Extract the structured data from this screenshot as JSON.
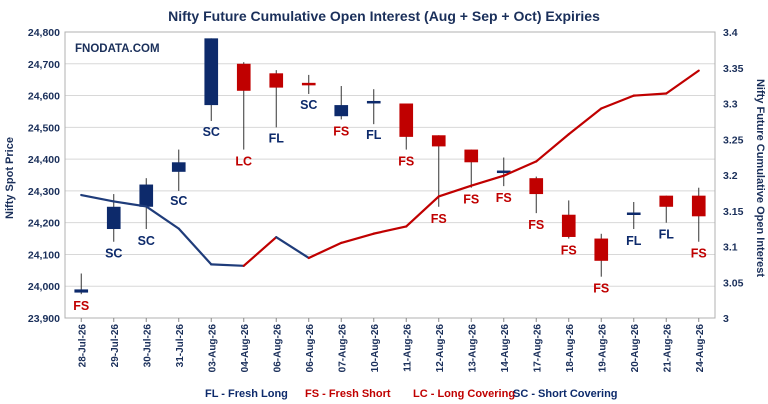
{
  "chart_data": {
    "type": "candlestick+line",
    "title": "Nifty Future Cumulative Open Interest (Aug + Sep + Oct) Expiries",
    "watermark": "FNODATA.COM",
    "ylabel_left": "Nifty Spot Price",
    "ylabel_right": "Nifty Future Cumulative Open Interest",
    "ylim_left": [
      23900,
      24800
    ],
    "ylim_right": [
      3,
      3.4
    ],
    "yticks_left": [
      "23,900",
      "24,000",
      "24,100",
      "24,200",
      "24,300",
      "24,400",
      "24,500",
      "24,600",
      "24,700",
      "24,800"
    ],
    "yticks_right": [
      "3",
      "3.05",
      "3.1",
      "3.15",
      "3.2",
      "3.25",
      "3.3",
      "3.35",
      "3.4"
    ],
    "categories": [
      "28-Jul-26",
      "29-Jul-26",
      "30-Jul-26",
      "31-Jul-26",
      "03-Aug-26",
      "04-Aug-26",
      "06-Aug-26",
      "06-Aug-26",
      "07-Aug-26",
      "10-Aug-26",
      "11-Aug-26",
      "12-Aug-26",
      "13-Aug-26",
      "14-Aug-26",
      "17-Aug-26",
      "18-Aug-26",
      "19-Aug-26",
      "20-Aug-26",
      "21-Aug-26",
      "24-Aug-26"
    ],
    "candles": [
      {
        "open": 23980,
        "close": 23990,
        "high": 24040,
        "low": 23975
      },
      {
        "open": 24180,
        "close": 24250,
        "high": 24290,
        "low": 24140
      },
      {
        "open": 24250,
        "close": 24320,
        "high": 24340,
        "low": 24180
      },
      {
        "open": 24360,
        "close": 24390,
        "high": 24430,
        "low": 24300
      },
      {
        "open": 24570,
        "close": 24780,
        "high": 24780,
        "low": 24520
      },
      {
        "open": 24700,
        "close": 24615,
        "high": 24705,
        "low": 24430
      },
      {
        "open": 24670,
        "close": 24625,
        "high": 24680,
        "low": 24500
      },
      {
        "open": 24640,
        "close": 24636,
        "high": 24665,
        "low": 24605
      },
      {
        "open": 24535,
        "close": 24570,
        "high": 24630,
        "low": 24525
      },
      {
        "open": 24580,
        "close": 24583,
        "high": 24620,
        "low": 24510
      },
      {
        "open": 24575,
        "close": 24470,
        "high": 24575,
        "low": 24430
      },
      {
        "open": 24475,
        "close": 24440,
        "high": 24475,
        "low": 24250
      },
      {
        "open": 24430,
        "close": 24390,
        "high": 24430,
        "low": 24310
      },
      {
        "open": 24360,
        "close": 24364,
        "high": 24405,
        "low": 24315
      },
      {
        "open": 24340,
        "close": 24290,
        "high": 24345,
        "low": 24230
      },
      {
        "open": 24225,
        "close": 24155,
        "high": 24270,
        "low": 24150
      },
      {
        "open": 24150,
        "close": 24080,
        "high": 24165,
        "low": 24030
      },
      {
        "open": 24228,
        "close": 24232,
        "high": 24265,
        "low": 24180
      },
      {
        "open": 24285,
        "close": 24250,
        "high": 24285,
        "low": 24200
      },
      {
        "open": 24285,
        "close": 24220,
        "high": 24310,
        "low": 24140
      }
    ],
    "signals": [
      "FS",
      "SC",
      "SC",
      "SC",
      "SC",
      "LC",
      "FL",
      "SC",
      "FS",
      "FL",
      "FS",
      "FS",
      "FS",
      "FS",
      "FS",
      "FS",
      "FS",
      "FL",
      "FL",
      "FS"
    ],
    "series": [
      {
        "name": "Nifty Future Cumulative Open Interest",
        "values": [
          3.172,
          3.163,
          3.156,
          3.125,
          3.075,
          3.073,
          3.113,
          3.084,
          3.105,
          3.118,
          3.128,
          3.17,
          3.185,
          3.199,
          3.219,
          3.257,
          3.293,
          3.311,
          3.314,
          3.346
        ]
      }
    ],
    "colors": {
      "bullish": "#0d2a6b",
      "bearish": "#c00000",
      "line_falling": "#1f3c7a",
      "line_rising": "#c00000",
      "text": "#1a2f5a",
      "grid": "#d8d8d8"
    },
    "legend": [
      {
        "code": "FL",
        "text": "FL - Fresh Long"
      },
      {
        "code": "FS",
        "text": "FS - Fresh Short"
      },
      {
        "code": "LC",
        "text": "LC - Long Covering"
      },
      {
        "code": "SC",
        "text": "SC - Short Covering"
      }
    ],
    "grid": true
  }
}
